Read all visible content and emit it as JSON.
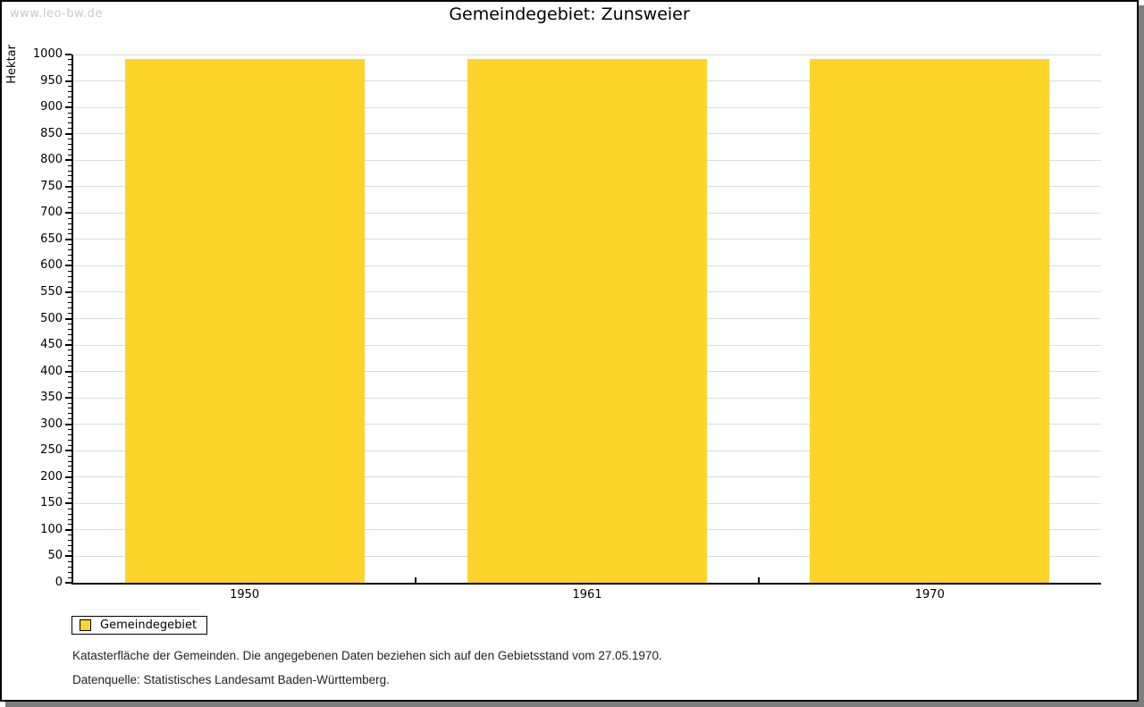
{
  "watermark": "www.leo-bw.de",
  "title": "Gemeindegebiet: Zunsweier",
  "chart_data": {
    "type": "bar",
    "title": "Gemeindegebiet: Zunsweier",
    "categories": [
      "1950",
      "1961",
      "1970"
    ],
    "series": [
      {
        "name": "Gemeindegebiet",
        "values": [
          992,
          992,
          992
        ]
      }
    ],
    "xlabel": "",
    "ylabel": "Hektar",
    "ylim": [
      0,
      1000
    ],
    "ytick_step": 50,
    "ytick_minor_step": 10,
    "grid": true,
    "legend_position": "bottom-left",
    "bar_color": "#fcd42c"
  },
  "legend": {
    "items": [
      {
        "label": "Gemeindegebiet",
        "color": "#fcd42c"
      }
    ]
  },
  "footnotes": {
    "line1": "Katasterfläche der Gemeinden. Die angegebenen Daten beziehen sich auf den Gebietsstand vom 27.05.1970.",
    "line2": "Datenquelle: Statistisches Landesamt Baden-Württemberg."
  },
  "colors": {
    "bar": "#fcd42c",
    "grid": "#dcdcdc",
    "axis": "#000000",
    "watermark": "#c9c9c9",
    "frame_shadow": "#7d7d7d"
  }
}
